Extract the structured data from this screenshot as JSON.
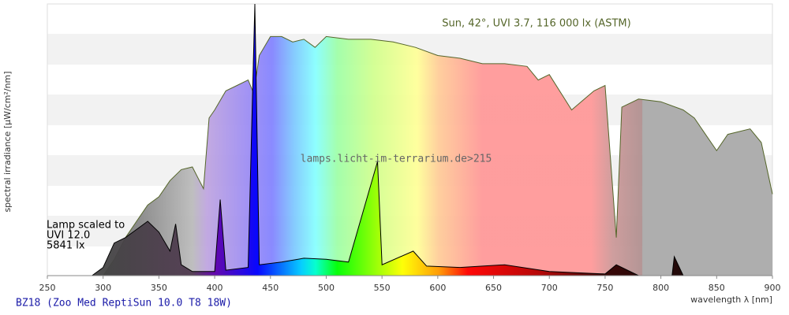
{
  "chart_data": {
    "type": "line",
    "title": "Sun, 42°, UVI 3.7, 116 000 lx (ASTM)",
    "watermark": "lamps.licht-im-terrarium.de>215",
    "annotation": [
      "Lamp scaled to",
      "UVI 12.0",
      "5841 lx"
    ],
    "x_label": "wavelength λ [nm]",
    "y_label": "spectral irradiance [µW/cm²/nm]",
    "footer": "BZ18 (Zoo Med ReptiSun 10.0 T8 18W)",
    "xlim": [
      250,
      900
    ],
    "xticks": [
      250,
      300,
      350,
      400,
      450,
      500,
      550,
      600,
      650,
      700,
      750,
      800,
      850,
      900
    ],
    "ylim": [
      0,
      100
    ],
    "series": [
      {
        "name": "Sun",
        "color": "#55662a",
        "x": [
          300,
          310,
          320,
          330,
          340,
          350,
          360,
          370,
          380,
          390,
          395,
          400,
          410,
          420,
          430,
          435,
          440,
          450,
          460,
          470,
          480,
          490,
          500,
          520,
          540,
          560,
          580,
          600,
          620,
          640,
          660,
          680,
          690,
          700,
          720,
          740,
          750,
          760,
          765,
          780,
          800,
          820,
          830,
          850,
          860,
          880,
          890,
          900
        ],
        "values": [
          0,
          6,
          14,
          20,
          26,
          29,
          35,
          39,
          40,
          32,
          58,
          61,
          68,
          70,
          72,
          67,
          81,
          88,
          88,
          86,
          87,
          84,
          88,
          87,
          87,
          86,
          84,
          81,
          80,
          78,
          78,
          77,
          72,
          74,
          61,
          68,
          70,
          14,
          62,
          65,
          64,
          61,
          58,
          46,
          52,
          54,
          49,
          30
        ]
      },
      {
        "name": "Lamp",
        "color": "#000000",
        "x": [
          290,
          300,
          310,
          320,
          330,
          340,
          350,
          360,
          365,
          370,
          380,
          400,
          405,
          410,
          430,
          436,
          440,
          460,
          480,
          500,
          520,
          546,
          550,
          578,
          590,
          620,
          660,
          700,
          750,
          760,
          780,
          810,
          812,
          820,
          900
        ],
        "values": [
          0,
          3,
          12,
          14,
          17,
          20,
          16,
          9,
          19,
          4,
          1.5,
          1.5,
          28,
          2,
          3,
          100,
          4,
          5,
          6.4,
          6,
          5,
          42,
          4,
          9,
          3.5,
          3,
          4,
          1.5,
          0.6,
          4,
          0,
          0,
          7,
          0,
          0
        ]
      }
    ]
  }
}
